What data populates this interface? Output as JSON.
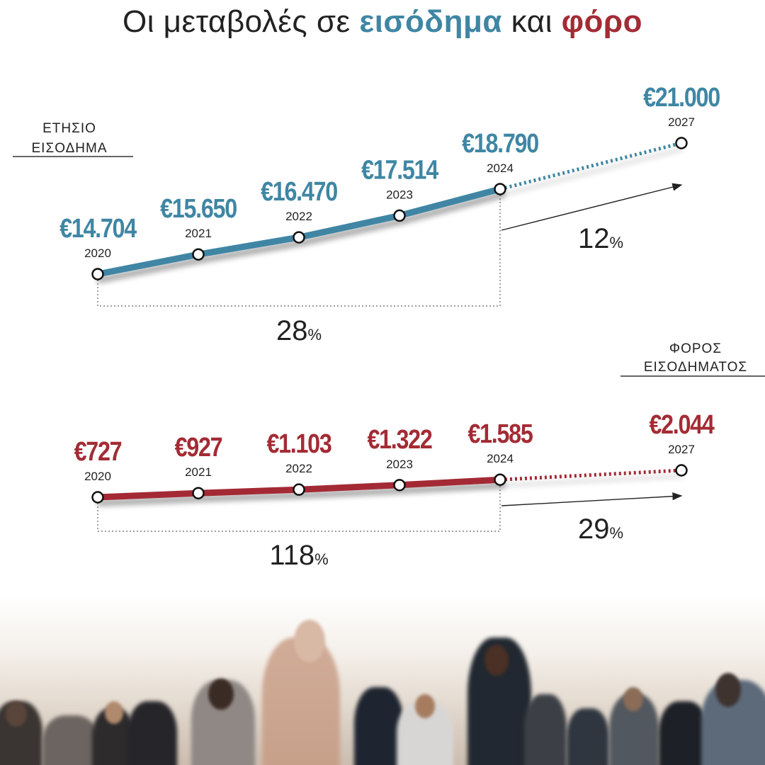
{
  "title": {
    "prefix": "Οι μεταβολές σε ",
    "income_word": "εισόδημα",
    "middle": " και ",
    "tax_word": "φόρο"
  },
  "colors": {
    "income": "#3f86a4",
    "tax": "#a32b34",
    "text": "#222222"
  },
  "chart_data": [
    {
      "type": "line",
      "label_lines": [
        "ΕΤΗΣΙΟ",
        "ΕΙΣΟΔΗΜΑ"
      ],
      "x": [
        "2020",
        "2021",
        "2022",
        "2023",
        "2024",
        "2027"
      ],
      "values": [
        14704,
        15650,
        16470,
        17514,
        18790,
        21000
      ],
      "value_labels": [
        "€14.704",
        "€15.650",
        "€16.470",
        "€17.514",
        "€18.790",
        "€21.000"
      ],
      "projected_from": "2024",
      "change_2020_2024": {
        "number": "28",
        "unit": "%"
      },
      "change_2024_2027": {
        "number": "12",
        "unit": "%"
      }
    },
    {
      "type": "line",
      "label_lines": [
        "ΦΟΡΟΣ",
        "ΕΙΣΟΔΗΜΑΤΟΣ"
      ],
      "x": [
        "2020",
        "2021",
        "2022",
        "2023",
        "2024",
        "2027"
      ],
      "values": [
        727,
        927,
        1103,
        1322,
        1585,
        2044
      ],
      "value_labels": [
        "€727",
        "€927",
        "€1.103",
        "€1.322",
        "€1.585",
        "€2.044"
      ],
      "projected_from": "2024",
      "change_2020_2024": {
        "number": "118",
        "unit": "%"
      },
      "change_2024_2027": {
        "number": "29",
        "unit": "%"
      }
    }
  ]
}
